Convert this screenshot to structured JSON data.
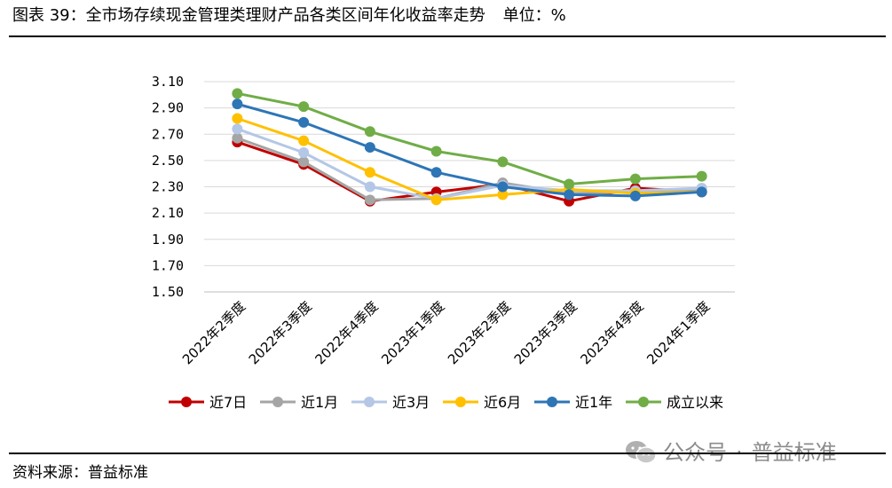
{
  "header": {
    "title": "图表 39：全市场存续现金管理类理财产品各类区间年化收益率走势",
    "unit": "单位：%"
  },
  "footer": {
    "source": "资料来源：普益标准",
    "watermark_prefix": "公众号",
    "watermark_sep": "·",
    "watermark_name": "普益标准",
    "watermark_icon": "wechat-icon"
  },
  "chart_data": {
    "type": "line",
    "categories": [
      "2022年2季度",
      "2022年3季度",
      "2022年4季度",
      "2023年1季度",
      "2023年2季度",
      "2023年3季度",
      "2023年4季度",
      "2024年1季度"
    ],
    "y_ticks": [
      "3.10",
      "2.90",
      "2.70",
      "2.50",
      "2.30",
      "2.10",
      "1.90",
      "1.70",
      "1.50"
    ],
    "ylim": [
      1.5,
      3.1
    ],
    "grid": true,
    "legend_position": "bottom",
    "series": [
      {
        "name": "近7日",
        "color": "#c00000",
        "values": [
          2.64,
          2.47,
          2.19,
          2.26,
          2.32,
          2.19,
          2.29,
          2.26
        ]
      },
      {
        "name": "近1月",
        "color": "#a5a5a5",
        "values": [
          2.67,
          2.49,
          2.2,
          2.21,
          2.33,
          2.25,
          2.26,
          2.27
        ]
      },
      {
        "name": "近3月",
        "color": "#b4c7e7",
        "values": [
          2.74,
          2.56,
          2.3,
          2.21,
          2.31,
          2.27,
          2.27,
          2.29
        ]
      },
      {
        "name": "近6月",
        "color": "#ffc000",
        "values": [
          2.82,
          2.65,
          2.41,
          2.2,
          2.24,
          2.28,
          2.25,
          2.26
        ]
      },
      {
        "name": "近1年",
        "color": "#2e75b6",
        "values": [
          2.93,
          2.79,
          2.6,
          2.41,
          2.3,
          2.24,
          2.23,
          2.26
        ]
      },
      {
        "name": "成立以来",
        "color": "#70ad47",
        "values": [
          3.01,
          2.91,
          2.72,
          2.57,
          2.49,
          2.32,
          2.36,
          2.38
        ]
      }
    ]
  }
}
